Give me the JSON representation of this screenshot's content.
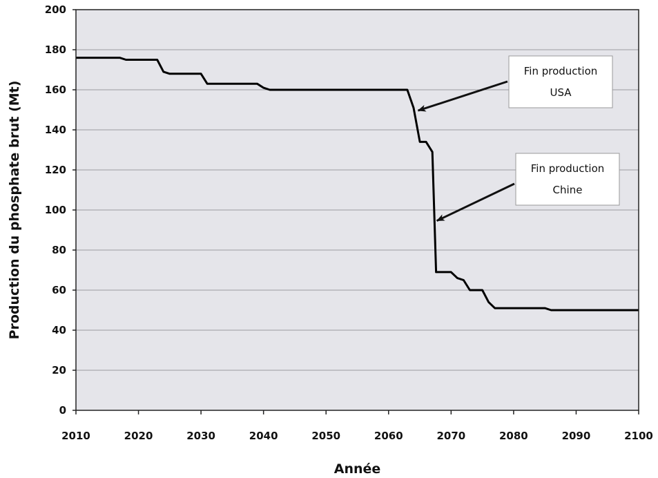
{
  "chart_data": {
    "type": "line",
    "title": "",
    "xlabel": "Année",
    "ylabel": "Production du phosphate brut (Mt)",
    "xlim": [
      2010,
      2100
    ],
    "ylim": [
      0,
      200
    ],
    "x_ticks": [
      2010,
      2020,
      2030,
      2040,
      2050,
      2060,
      2070,
      2080,
      2090,
      2100
    ],
    "y_ticks": [
      0,
      20,
      40,
      60,
      80,
      100,
      120,
      140,
      160,
      180,
      200
    ],
    "grid": "horizontal",
    "plot_background": "#e5e5ea",
    "line_color": "#000000",
    "series": [
      {
        "x": [
          2010,
          2017,
          2018,
          2023,
          2024,
          2025,
          2030,
          2031,
          2039,
          2040,
          2041,
          2063,
          2064,
          2065,
          2066,
          2067,
          2067.6,
          2068,
          2070,
          2071,
          2072,
          2073,
          2075,
          2076,
          2077,
          2085,
          2086,
          2100
        ],
        "y": [
          176,
          176,
          175,
          175,
          169,
          168,
          168,
          163,
          163,
          161,
          160,
          160,
          151,
          134,
          134,
          129,
          69,
          69,
          69,
          66,
          65,
          60,
          60,
          54,
          51,
          51,
          50,
          50
        ]
      }
    ],
    "annotations": [
      {
        "lines": [
          "Fin production",
          "USA"
        ],
        "arrow_to": [
          2064.5,
          151
        ]
      },
      {
        "lines": [
          "Fin production",
          "Chine"
        ],
        "arrow_to": [
          2067.5,
          96
        ]
      }
    ]
  }
}
